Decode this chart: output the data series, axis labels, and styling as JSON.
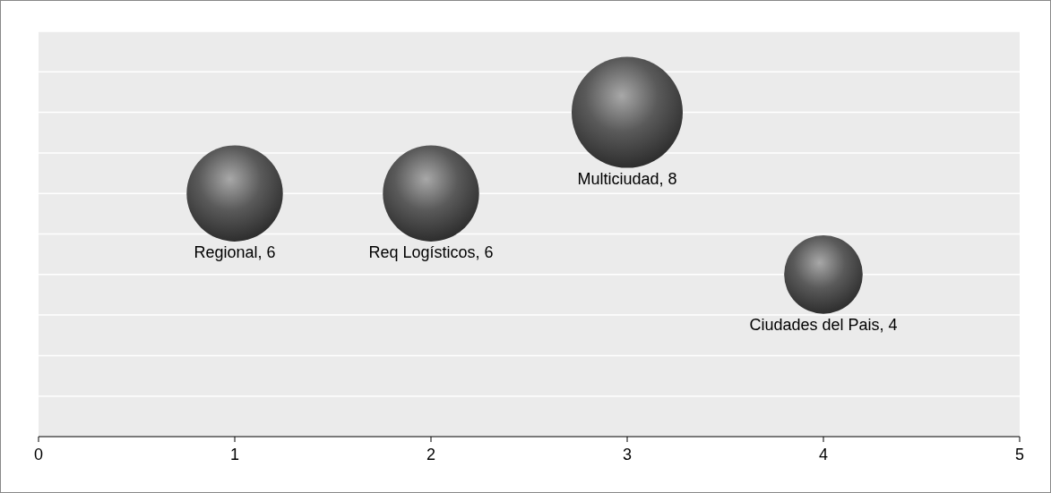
{
  "chart_data": {
    "type": "bubble",
    "x": [
      1,
      2,
      3,
      4
    ],
    "series": [
      {
        "color": "#5a5a5a",
        "values": [
          6,
          6,
          8,
          4
        ],
        "sizes": [
          0.75,
          0.75,
          1,
          0.5
        ],
        "value_labels": [
          "Regional, 6",
          "Req Logísticos, 6",
          "Multiciudad, 8",
          "Ciudades del Pais, 4"
        ]
      }
    ],
    "xlim": [
      0,
      5
    ],
    "xticks": [
      0,
      1,
      2,
      3,
      4,
      5
    ],
    "ylim": [
      0,
      10
    ],
    "yticks": [
      {
        "value": 1,
        "label": null
      },
      {
        "value": 2,
        "label": null
      },
      {
        "value": 3,
        "label": null
      },
      {
        "value": 4,
        "label": null
      },
      {
        "value": 5,
        "label": null
      },
      {
        "value": 6,
        "label": null
      },
      {
        "value": 7,
        "label": null
      },
      {
        "value": 8,
        "label": null
      },
      {
        "value": 9,
        "label": null
      },
      {
        "value": 10,
        "label": null
      }
    ],
    "tick_labels": "x",
    "grid": "y"
  }
}
